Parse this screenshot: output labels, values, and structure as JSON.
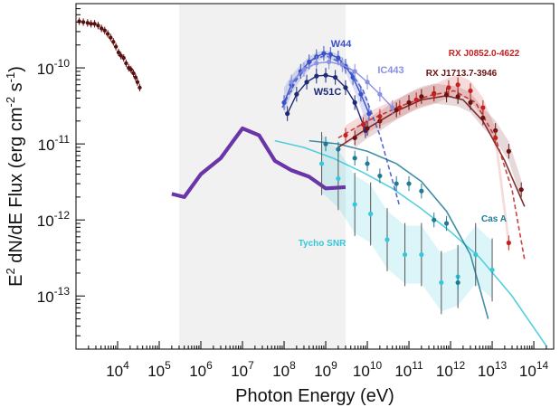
{
  "chart_data": {
    "type": "scatter",
    "xlabel": "Photon Energy (eV)",
    "ylabel_main": "E",
    "ylabel_sup1": "2",
    "ylabel_mid": " dN/dE Flux (erg  cm",
    "ylabel_sup2": "-2",
    "ylabel_mid2": " s",
    "ylabel_sup3": "-1",
    "ylabel_end": ")",
    "x_scale": "log",
    "y_scale": "log",
    "xlim": [
      1000,
      300000000000000
    ],
    "ylim": [
      2e-14,
      7e-10
    ],
    "x_ticks": [
      {
        "base": "10",
        "exp": "4",
        "value": 10000
      },
      {
        "base": "10",
        "exp": "5",
        "value": 100000
      },
      {
        "base": "10",
        "exp": "6",
        "value": 1000000
      },
      {
        "base": "10",
        "exp": "7",
        "value": 10000000
      },
      {
        "base": "10",
        "exp": "8",
        "value": 100000000
      },
      {
        "base": "10",
        "exp": "9",
        "value": 1000000000
      },
      {
        "base": "10",
        "exp": "10",
        "value": 10000000000
      },
      {
        "base": "10",
        "exp": "11",
        "value": 100000000000
      },
      {
        "base": "10",
        "exp": "12",
        "value": 1000000000000
      },
      {
        "base": "10",
        "exp": "13",
        "value": 10000000000000
      },
      {
        "base": "10",
        "exp": "14",
        "value": 100000000000000
      }
    ],
    "y_ticks": [
      {
        "base": "10",
        "exp": "-10",
        "value": 1e-10
      },
      {
        "base": "10",
        "exp": "-11",
        "value": 1e-11
      },
      {
        "base": "10",
        "exp": "-12",
        "value": 1e-12
      },
      {
        "base": "10",
        "exp": "-13",
        "value": 1e-13
      }
    ],
    "shaded_band": {
      "x_range": [
        300000,
        3000000000
      ],
      "color": "#f1f1f1"
    },
    "colors": {
      "xray": "#5a1010",
      "mev_sensitivity": "#6a35a8",
      "w44": "#3a50c8",
      "ic443": "#8a90e0",
      "w51c": "#1c2a78",
      "rxj0852": "#c42020",
      "rxj1713": "#6a1212",
      "tycho": "#35c8d8",
      "casa": "#1f7a96"
    },
    "series": [
      {
        "key": "xray",
        "x": [
          1200,
          1500,
          1900,
          2300,
          2800,
          3400,
          4100,
          4900,
          5800,
          6800,
          7900,
          9100,
          10500,
          12000,
          14000,
          16000,
          18500,
          21000,
          24000,
          27000,
          30000,
          34000
        ],
        "y": [
          4.1e-10,
          4e-10,
          3.9e-10,
          3.8e-10,
          3.8e-10,
          3.6e-10,
          3.3e-10,
          3.1e-10,
          2.8e-10,
          2.5e-10,
          2.2e-10,
          1.9e-10,
          1.6e-10,
          1.45e-10,
          1.35e-10,
          1.15e-10,
          1e-10,
          9.5e-11,
          8.5e-11,
          7.5e-11,
          6.5e-11,
          5.5e-11
        ]
      },
      {
        "key": "mev_sensitivity",
        "x": [
          200000,
          400000,
          1000000,
          3000000,
          10000000,
          25000000,
          60000000,
          150000000,
          400000000,
          1000000000,
          3000000000
        ],
        "y": [
          2.2e-12,
          2e-12,
          4e-12,
          6.5e-12,
          1.6e-11,
          1.3e-11,
          6e-12,
          4.5e-12,
          3.7e-12,
          2.6e-12,
          2.7e-12
        ]
      },
      {
        "key": "w44",
        "name": "W44",
        "x": [
          100000000,
          150000000,
          250000000,
          400000000,
          600000000,
          900000000,
          1300000000,
          2000000000,
          3000000000,
          4500000000,
          7000000000,
          11000000000
        ],
        "y": [
          3.5e-11,
          6e-11,
          9e-11,
          1.2e-10,
          1.4e-10,
          1.55e-10,
          1.5e-10,
          1.35e-10,
          1.05e-10,
          7.5e-11,
          4.5e-11,
          2.5e-11
        ],
        "fit_band_low": [
          2.5e-11,
          4.5e-11,
          7e-11,
          9.5e-11,
          1.2e-10,
          1.35e-10,
          1.3e-10,
          1.15e-10,
          8.5e-11,
          5.5e-11,
          3e-11,
          1.3e-11
        ],
        "fit_band_high": [
          5.5e-11,
          8e-11,
          1.1e-10,
          1.4e-10,
          1.6e-10,
          1.7e-10,
          1.65e-10,
          1.5e-10,
          1.25e-10,
          9e-11,
          6e-11,
          3.5e-11
        ]
      },
      {
        "key": "ic443",
        "name": "IC443",
        "x": [
          150000000,
          300000000,
          600000000,
          1200000000,
          2500000000,
          5000000000,
          10000000000,
          20000000000,
          40000000000
        ],
        "y": [
          6.5e-11,
          9.5e-11,
          1.15e-10,
          1.2e-10,
          1.1e-10,
          9e-11,
          6.5e-11,
          4.5e-11,
          3e-11
        ]
      },
      {
        "key": "w51c",
        "name": "W51C",
        "x": [
          120000000,
          200000000,
          350000000,
          600000000,
          1000000000,
          1700000000,
          3000000000,
          5000000000,
          9000000000
        ],
        "y": [
          2.5e-11,
          4.5e-11,
          6.5e-11,
          7.8e-11,
          8e-11,
          7.5e-11,
          5.5e-11,
          3.5e-11,
          1.5e-11
        ]
      },
      {
        "key": "rxj1713",
        "name": "RX J1713.7-3946",
        "x": [
          5000000000,
          10000000000,
          20000000000,
          50000000000,
          100000000000,
          200000000000,
          400000000000,
          800000000000,
          1500000000000,
          3000000000000,
          6000000000000,
          12000000000000,
          25000000000000,
          50000000000000
        ],
        "y": [
          1.2e-11,
          1.6e-11,
          2e-11,
          2.8e-11,
          3.5e-11,
          4.2e-11,
          4.6e-11,
          4.4e-11,
          4.2e-11,
          3.5e-11,
          2.2e-11,
          1.5e-11,
          8e-12,
          2.5e-12
        ]
      },
      {
        "key": "rxj0852",
        "name": "RX J0852.0-4622",
        "x": [
          3000000000,
          8000000000,
          20000000000,
          60000000000,
          150000000000,
          400000000000,
          900000000000,
          1500000000000,
          3000000000000,
          6000000000000,
          12000000000000,
          25000000000000
        ],
        "y": [
          1.3e-11,
          1.8e-11,
          2.3e-11,
          3e-11,
          3.8e-11,
          4.5e-11,
          5.5e-11,
          6e-11,
          5e-11,
          3e-11,
          1.2e-11,
          5e-13
        ]
      },
      {
        "key": "tycho",
        "name": "Tycho SNR",
        "x": [
          800000000,
          2000000000,
          5000000000,
          12000000000,
          30000000000,
          80000000000,
          200000000000,
          600000000000,
          1500000000000,
          4000000000000,
          10000000000000
        ],
        "y": [
          5.5e-12,
          3.5e-12,
          1.6e-12,
          1.2e-12,
          5.5e-13,
          3.5e-13,
          3.5e-13,
          1.5e-13,
          1.8e-13,
          3.5e-13,
          2.2e-13
        ]
      },
      {
        "key": "casa",
        "name": "Cas A",
        "x": [
          1000000000,
          2000000000,
          5000000000,
          10000000000,
          20000000000,
          50000000000,
          100000000000,
          200000000000,
          400000000000,
          800000000000,
          1500000000000
        ],
        "y": [
          1e-11,
          8.5e-12,
          6.5e-12,
          5.5e-12,
          3.8e-12,
          3e-12,
          3e-12,
          2.4e-12,
          1e-12,
          9e-13,
          1.5e-13
        ]
      }
    ],
    "curves": [
      {
        "key": "tycho",
        "x": [
          60000000,
          300000000,
          1500000000,
          8000000000,
          40000000000,
          200000000000,
          1000000000000,
          5000000000000,
          30000000000000,
          200000000000000
        ],
        "y": [
          1.1e-11,
          9e-12,
          6.5e-12,
          4.2e-12,
          2.6e-12,
          1.4e-12,
          7e-13,
          3.2e-13,
          1e-13,
          2.2e-14
        ]
      },
      {
        "key": "casa",
        "x": [
          400000000,
          2000000000,
          10000000000,
          50000000000,
          200000000000,
          800000000000,
          3000000000000,
          8000000000000
        ],
        "y": [
          1.1e-11,
          1e-11,
          8e-12,
          5.5e-12,
          3.2e-12,
          1.3e-12,
          3.5e-13,
          5e-14
        ]
      },
      {
        "key": "rxj1713",
        "x": [
          2000000000,
          10000000000,
          50000000000,
          200000000000,
          800000000000,
          2000000000000,
          6000000000000,
          20000000000000,
          60000000000000
        ],
        "y": [
          9e-12,
          1.6e-11,
          2.7e-11,
          3.8e-11,
          4.3e-11,
          3.8e-11,
          2e-11,
          6e-12,
          1.5e-12
        ]
      },
      {
        "key": "rxj0852",
        "x": [
          2000000000,
          10000000000,
          60000000000,
          300000000000,
          1200000000000,
          4000000000000,
          12000000000000,
          30000000000000,
          60000000000000
        ],
        "y": [
          1.2e-11,
          2e-11,
          3.1e-11,
          4.3e-11,
          5e-11,
          3.5e-11,
          1.2e-11,
          2.5e-12,
          3e-13
        ]
      },
      {
        "key": "w44",
        "x": [
          90000000,
          200000000,
          500000000,
          1000000000,
          3000000000,
          8000000000,
          20000000000,
          60000000000
        ],
        "y": [
          3e-11,
          7e-11,
          1.3e-10,
          1.45e-10,
          1.1e-10,
          5e-11,
          1.3e-11,
          1.5e-12
        ]
      }
    ]
  }
}
